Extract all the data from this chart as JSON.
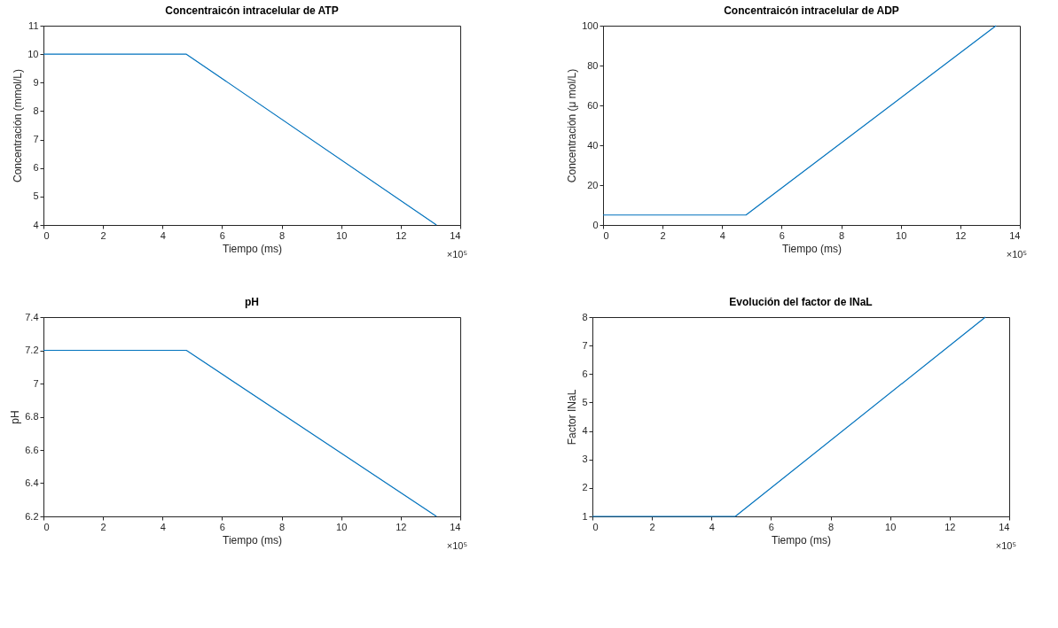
{
  "chart_data": [
    {
      "type": "line",
      "title": "Concentraicón intracelular de ATP",
      "xlabel": "Tiempo (ms)",
      "ylabel": "Concentración (mmol/L)",
      "x": [
        0,
        4.8,
        13.2
      ],
      "series": [
        {
          "color": "#0072bd",
          "values": [
            10,
            10,
            4
          ]
        }
      ],
      "xlim": [
        0,
        14
      ],
      "xticks": [
        0,
        2,
        4,
        6,
        8,
        10,
        12,
        14
      ],
      "ylim": [
        4,
        11
      ],
      "yticks": [
        4,
        5,
        6,
        7,
        8,
        9,
        10,
        11
      ],
      "grid": false,
      "annotations": [
        "×10⁵"
      ]
    },
    {
      "type": "line",
      "title": "Concentraicón intracelular de ADP",
      "xlabel": "Tiempo (ms)",
      "ylabel": "Concentración (μ mol/L)",
      "x": [
        0,
        4.8,
        13.2
      ],
      "series": [
        {
          "color": "#0072bd",
          "values": [
            5,
            5,
            100
          ]
        }
      ],
      "xlim": [
        0,
        14
      ],
      "xticks": [
        0,
        2,
        4,
        6,
        8,
        10,
        12,
        14
      ],
      "ylim": [
        0,
        100
      ],
      "yticks": [
        0,
        20,
        40,
        60,
        80,
        100
      ],
      "grid": false,
      "annotations": [
        "×10⁵"
      ]
    },
    {
      "type": "line",
      "title": "pH",
      "xlabel": "Tiempo (ms)",
      "ylabel": "pH",
      "x": [
        0,
        4.8,
        13.2
      ],
      "series": [
        {
          "color": "#0072bd",
          "values": [
            7.2,
            7.2,
            6.2
          ]
        }
      ],
      "xlim": [
        0,
        14
      ],
      "xticks": [
        0,
        2,
        4,
        6,
        8,
        10,
        12,
        14
      ],
      "ylim": [
        6.2,
        7.4
      ],
      "yticks": [
        6.2,
        6.4,
        6.6,
        6.8,
        7,
        7.2,
        7.4
      ],
      "grid": false,
      "annotations": [
        "×10⁵"
      ]
    },
    {
      "type": "line",
      "title": "Evolución del factor de INaL",
      "xlabel": "Tiempo (ms)",
      "ylabel": "Factor INaL",
      "x": [
        0,
        4.8,
        13.2
      ],
      "series": [
        {
          "color": "#0072bd",
          "values": [
            1,
            1,
            8
          ]
        }
      ],
      "xlim": [
        0,
        14
      ],
      "xticks": [
        0,
        2,
        4,
        6,
        8,
        10,
        12,
        14
      ],
      "ylim": [
        1,
        8
      ],
      "yticks": [
        1,
        2,
        3,
        4,
        5,
        6,
        7,
        8
      ],
      "grid": false,
      "annotations": [
        "×10⁵"
      ]
    }
  ]
}
